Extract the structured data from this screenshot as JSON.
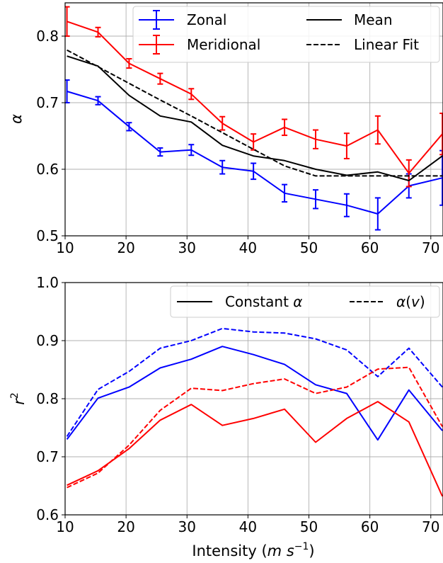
{
  "chart_data": [
    {
      "type": "line",
      "panel": "top",
      "xlabel": "",
      "ylabel": "α",
      "xlim": [
        10,
        72
      ],
      "ylim": [
        0.5,
        0.85
      ],
      "xticks": [
        10,
        20,
        30,
        40,
        50,
        60,
        70
      ],
      "xtick_labels": [
        "10",
        "20",
        "30",
        "40",
        "50",
        "60",
        "70"
      ],
      "yticks": [
        0.5,
        0.6,
        0.7,
        0.8
      ],
      "ytick_labels": [
        "0.5",
        "0.6",
        "0.7",
        "0.8"
      ],
      "grid": true,
      "legend": {
        "placement": "top-right",
        "columns": 2
      },
      "x": [
        10.3,
        15.4,
        20.5,
        25.6,
        30.7,
        35.8,
        40.9,
        46.0,
        51.1,
        56.2,
        61.3,
        66.4,
        71.9
      ],
      "series": [
        {
          "name": "Zonal",
          "color": "#0000ff",
          "style": "solid",
          "errorbars": true,
          "values": [
            0.717,
            0.703,
            0.664,
            0.626,
            0.629,
            0.603,
            0.597,
            0.564,
            0.555,
            0.546,
            0.533,
            0.575,
            0.587
          ],
          "errors": [
            0.017,
            0.006,
            0.006,
            0.006,
            0.008,
            0.01,
            0.012,
            0.013,
            0.014,
            0.017,
            0.024,
            0.018,
            0.041
          ]
        },
        {
          "name": "Meridional",
          "color": "#ff0000",
          "style": "solid",
          "errorbars": true,
          "values": [
            0.822,
            0.806,
            0.759,
            0.736,
            0.713,
            0.669,
            0.641,
            0.663,
            0.645,
            0.635,
            0.659,
            0.594,
            0.653
          ],
          "errors": [
            0.022,
            0.007,
            0.007,
            0.008,
            0.008,
            0.01,
            0.012,
            0.012,
            0.014,
            0.019,
            0.021,
            0.02,
            0.031
          ]
        },
        {
          "name": "Mean",
          "color": "#000000",
          "style": "solid",
          "errorbars": false,
          "values": [
            0.77,
            0.755,
            0.711,
            0.68,
            0.671,
            0.636,
            0.62,
            0.613,
            0.6,
            0.591,
            0.596,
            0.583,
            0.62
          ]
        },
        {
          "name": "Linear Fit",
          "color": "#000000",
          "style": "dashed",
          "errorbars": false,
          "x": [
            10.3,
            15.4,
            20.5,
            25.6,
            30.7,
            35.8,
            40.9,
            46.0,
            51.1,
            56.2,
            61.3,
            66.4,
            71.9
          ],
          "values": [
            0.779,
            0.754,
            0.729,
            0.704,
            0.68,
            0.655,
            0.63,
            0.605,
            0.59,
            0.59,
            0.59,
            0.59,
            0.59
          ]
        }
      ]
    },
    {
      "type": "line",
      "panel": "bottom",
      "xlabel": "Intensity (m s⁻¹)",
      "ylabel": "r²",
      "xlim": [
        10,
        72
      ],
      "ylim": [
        0.6,
        1.0
      ],
      "xticks": [
        10,
        20,
        30,
        40,
        50,
        60,
        70
      ],
      "xtick_labels": [
        "10",
        "20",
        "30",
        "40",
        "50",
        "60",
        "70"
      ],
      "yticks": [
        0.6,
        0.7,
        0.8,
        0.9,
        1.0
      ],
      "ytick_labels": [
        "0.6",
        "0.7",
        "0.8",
        "0.9",
        "1.0"
      ],
      "grid": true,
      "legend": {
        "placement": "top-right",
        "columns": 2
      },
      "legend_entries": [
        {
          "name": "Constant α",
          "color": "#000000",
          "style": "solid"
        },
        {
          "name": "α(v)",
          "color": "#000000",
          "style": "dashed"
        }
      ],
      "x": [
        10.3,
        15.4,
        20.5,
        25.6,
        30.7,
        35.8,
        40.9,
        46.0,
        51.1,
        56.2,
        61.3,
        66.4,
        71.9
      ],
      "series": [
        {
          "color": "#0000ff",
          "style": "solid",
          "values": [
            0.73,
            0.801,
            0.82,
            0.853,
            0.868,
            0.89,
            0.876,
            0.859,
            0.824,
            0.809,
            0.729,
            0.815,
            0.745
          ]
        },
        {
          "color": "#0000ff",
          "style": "dashed",
          "values": [
            0.735,
            0.816,
            0.847,
            0.887,
            0.9,
            0.921,
            0.915,
            0.913,
            0.903,
            0.884,
            0.838,
            0.887,
            0.82
          ]
        },
        {
          "color": "#ff0000",
          "style": "solid",
          "values": [
            0.651,
            0.676,
            0.714,
            0.763,
            0.79,
            0.754,
            0.766,
            0.782,
            0.725,
            0.766,
            0.795,
            0.76,
            0.632
          ]
        },
        {
          "color": "#ff0000",
          "style": "dashed",
          "values": [
            0.647,
            0.672,
            0.72,
            0.78,
            0.818,
            0.814,
            0.826,
            0.834,
            0.809,
            0.82,
            0.851,
            0.854,
            0.752
          ]
        }
      ]
    }
  ],
  "legend_top": {
    "zonal": "Zonal",
    "meridional": "Meridional",
    "mean": "Mean",
    "linear_fit": "Linear Fit"
  },
  "legend_bottom": {
    "constant_prefix": "Constant ",
    "constant_symbol": "α",
    "alpha_v_alpha": "α",
    "alpha_v_open": "(",
    "alpha_v_var": "v",
    "alpha_v_close": ")"
  },
  "labels": {
    "top_ylabel": "α",
    "bottom_ylabel_base": "r",
    "bottom_ylabel_sup": "2",
    "xlabel_prefix": "Intensity (",
    "xlabel_m": "m",
    "xlabel_s": " s",
    "xlabel_sup": "−1",
    "xlabel_suffix": ")"
  }
}
